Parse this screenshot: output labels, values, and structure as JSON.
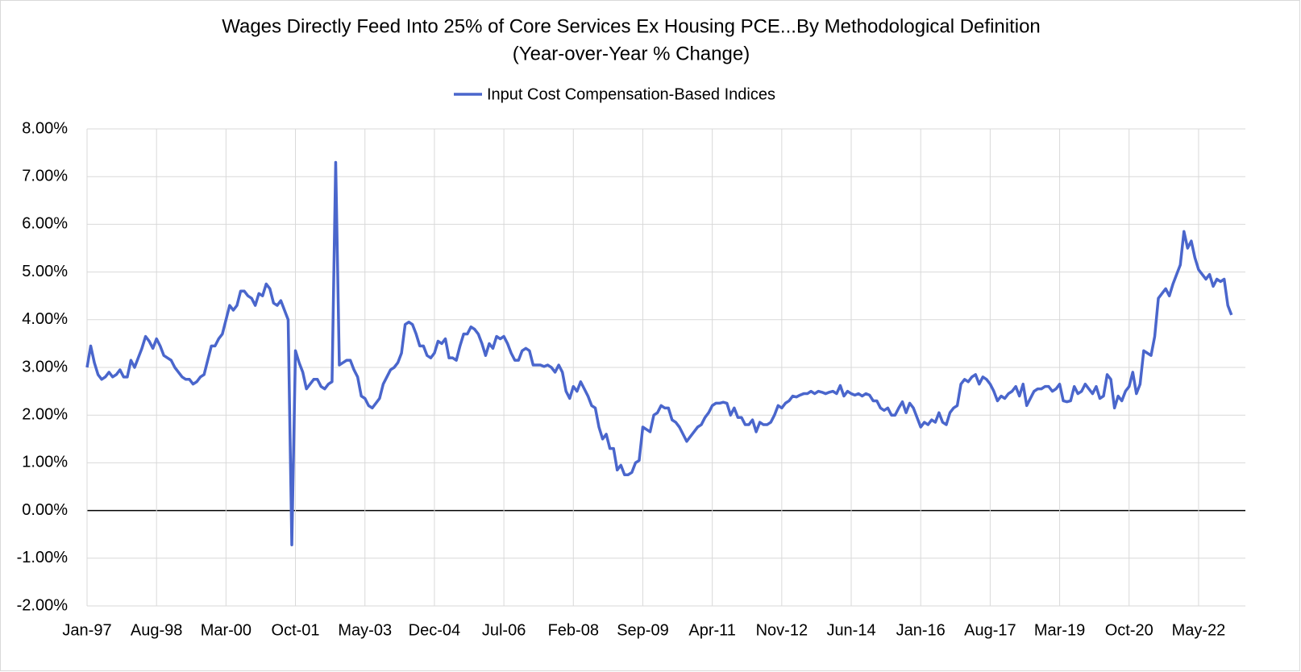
{
  "chart_data": {
    "type": "line",
    "title": "Wages Directly Feed Into 25% of Core Services Ex Housing PCE...By Methodological Definition",
    "subtitle": "(Year-over-Year % Change)",
    "categories": [
      "Jan-97",
      null,
      null,
      null,
      null,
      null,
      null,
      null,
      null,
      null,
      null,
      null,
      null,
      null,
      null,
      null,
      null,
      null,
      null,
      "Aug-98",
      null,
      null,
      null,
      null,
      null,
      null,
      null,
      null,
      null,
      null,
      null,
      null,
      null,
      null,
      null,
      null,
      null,
      null,
      "Mar-00",
      null,
      null,
      null,
      null,
      null,
      null,
      null,
      null,
      null,
      null,
      null,
      null,
      null,
      null,
      null,
      null,
      null,
      null,
      "Oct-01",
      null,
      null,
      null,
      null,
      null,
      null,
      null,
      null,
      null,
      null,
      null,
      null,
      null,
      null,
      null,
      null,
      null,
      null,
      "May-03",
      null,
      null,
      null,
      null,
      null,
      null,
      null,
      null,
      null,
      null,
      null,
      null,
      null,
      null,
      null,
      null,
      null,
      null,
      "Dec-04",
      null,
      null,
      null,
      null,
      null,
      null,
      null,
      null,
      null,
      null,
      null,
      null,
      null,
      null,
      null,
      null,
      null,
      null,
      "Jul-06",
      null,
      null,
      null,
      null,
      null,
      null,
      null,
      null,
      null,
      null,
      null,
      null,
      null,
      null,
      null,
      null,
      null,
      null,
      "Feb-08",
      null,
      null,
      null,
      null,
      null,
      null,
      null,
      null,
      null,
      null,
      null,
      null,
      null,
      null,
      null,
      null,
      null,
      null,
      "Sep-09",
      null,
      null,
      null,
      null,
      null,
      null,
      null,
      null,
      null,
      null,
      null,
      null,
      null,
      null,
      null,
      null,
      null,
      null,
      "Apr-11",
      null,
      null,
      null,
      null,
      null,
      null,
      null,
      null,
      null,
      null,
      null,
      null,
      null,
      null,
      null,
      null,
      null,
      null,
      "Nov-12",
      null,
      null,
      null,
      null,
      null,
      null,
      null,
      null,
      null,
      null,
      null,
      null,
      null,
      null,
      null,
      null,
      null,
      null,
      "Jun-14",
      null,
      null,
      null,
      null,
      null,
      null,
      null,
      null,
      null,
      null,
      null,
      null,
      null,
      null,
      null,
      null,
      null,
      null,
      "Jan-16",
      null,
      null,
      null,
      null,
      null,
      null,
      null,
      null,
      null,
      null,
      null,
      null,
      null,
      null,
      null,
      null,
      null,
      null,
      "Aug-17",
      null,
      null,
      null,
      null,
      null,
      null,
      null,
      null,
      null,
      null,
      null,
      null,
      null,
      null,
      null,
      null,
      null,
      null,
      "Mar-19",
      null,
      null,
      null,
      null,
      null,
      null,
      null,
      null,
      null,
      null,
      null,
      null,
      null,
      null,
      null,
      null,
      null,
      null,
      "Oct-20",
      null,
      null,
      null,
      null,
      null,
      null,
      null,
      null,
      null,
      null,
      null,
      null,
      null,
      null,
      null,
      null,
      null,
      null,
      "May-22",
      null,
      null,
      null,
      null,
      null,
      null,
      null,
      null,
      null
    ],
    "series": [
      {
        "name": "Input Cost Compensation-Based Indices",
        "color": "#4a66cc",
        "values": [
          3.0,
          3.45,
          3.1,
          2.85,
          2.75,
          2.8,
          2.9,
          2.8,
          2.85,
          2.95,
          2.8,
          2.8,
          3.15,
          3.0,
          3.2,
          3.4,
          3.65,
          3.55,
          3.4,
          3.6,
          3.45,
          3.25,
          3.2,
          3.15,
          3.0,
          2.9,
          2.8,
          2.75,
          2.75,
          2.65,
          2.7,
          2.8,
          2.85,
          3.15,
          3.45,
          3.45,
          3.6,
          3.7,
          4.0,
          4.3,
          4.2,
          4.3,
          4.6,
          4.6,
          4.5,
          4.45,
          4.3,
          4.55,
          4.5,
          4.75,
          4.65,
          4.35,
          4.3,
          4.4,
          4.2,
          4.0,
          -0.72,
          3.35,
          3.1,
          2.9,
          2.55,
          2.65,
          2.75,
          2.75,
          2.6,
          2.55,
          2.65,
          2.7,
          7.3,
          3.05,
          3.1,
          3.15,
          3.15,
          2.95,
          2.8,
          2.4,
          2.35,
          2.2,
          2.15,
          2.25,
          2.35,
          2.65,
          2.8,
          2.95,
          3.0,
          3.1,
          3.3,
          3.9,
          3.95,
          3.9,
          3.7,
          3.45,
          3.45,
          3.25,
          3.2,
          3.3,
          3.55,
          3.5,
          3.6,
          3.2,
          3.2,
          3.15,
          3.45,
          3.7,
          3.7,
          3.85,
          3.8,
          3.7,
          3.5,
          3.25,
          3.5,
          3.4,
          3.65,
          3.6,
          3.65,
          3.5,
          3.3,
          3.15,
          3.15,
          3.35,
          3.4,
          3.35,
          3.05,
          3.05,
          3.05,
          3.02,
          3.05,
          3.0,
          2.9,
          3.05,
          2.9,
          2.5,
          2.35,
          2.6,
          2.5,
          2.7,
          2.55,
          2.4,
          2.2,
          2.15,
          1.75,
          1.5,
          1.6,
          1.3,
          1.3,
          0.85,
          0.95,
          0.75,
          0.75,
          0.8,
          1.0,
          1.05,
          1.75,
          1.7,
          1.65,
          2.0,
          2.05,
          2.2,
          2.15,
          2.15,
          1.9,
          1.85,
          1.75,
          1.6,
          1.45,
          1.55,
          1.65,
          1.75,
          1.8,
          1.95,
          2.05,
          2.2,
          2.25,
          2.25,
          2.27,
          2.25,
          2.0,
          2.15,
          1.95,
          1.95,
          1.8,
          1.8,
          1.9,
          1.65,
          1.85,
          1.8,
          1.8,
          1.85,
          2.0,
          2.2,
          2.15,
          2.25,
          2.3,
          2.4,
          2.38,
          2.42,
          2.45,
          2.45,
          2.5,
          2.45,
          2.5,
          2.48,
          2.45,
          2.48,
          2.5,
          2.45,
          2.62,
          2.4,
          2.5,
          2.45,
          2.42,
          2.45,
          2.4,
          2.45,
          2.42,
          2.3,
          2.3,
          2.15,
          2.1,
          2.15,
          2.0,
          2.0,
          2.15,
          2.28,
          2.05,
          2.25,
          2.15,
          1.95,
          1.75,
          1.85,
          1.8,
          1.9,
          1.85,
          2.05,
          1.85,
          1.8,
          2.05,
          2.15,
          2.2,
          2.65,
          2.75,
          2.7,
          2.8,
          2.85,
          2.65,
          2.8,
          2.75,
          2.65,
          2.5,
          2.3,
          2.4,
          2.35,
          2.45,
          2.5,
          2.6,
          2.4,
          2.65,
          2.2,
          2.35,
          2.5,
          2.55,
          2.55,
          2.6,
          2.6,
          2.5,
          2.55,
          2.65,
          2.3,
          2.28,
          2.3,
          2.6,
          2.45,
          2.5,
          2.65,
          2.55,
          2.45,
          2.6,
          2.35,
          2.4,
          2.85,
          2.75,
          2.15,
          2.4,
          2.3,
          2.5,
          2.6,
          2.9,
          2.45,
          2.65,
          3.35,
          3.3,
          3.25,
          3.65,
          4.45,
          4.55,
          4.65,
          4.5,
          4.75,
          4.95,
          5.15,
          5.85,
          5.5,
          5.65,
          5.3,
          5.05,
          4.95,
          4.85,
          4.95,
          4.7,
          4.85,
          4.8,
          4.85,
          4.3,
          4.1
        ]
      }
    ],
    "ylim": [
      -2,
      8
    ],
    "yticks": [
      {
        "value": -2,
        "label": "-2.00%"
      },
      {
        "value": -1,
        "label": "-1.00%"
      },
      {
        "value": 0,
        "label": "0.00%"
      },
      {
        "value": 1,
        "label": "1.00%"
      },
      {
        "value": 2,
        "label": "2.00%"
      },
      {
        "value": 3,
        "label": "3.00%"
      },
      {
        "value": 4,
        "label": "4.00%"
      },
      {
        "value": 5,
        "label": "5.00%"
      },
      {
        "value": 6,
        "label": "6.00%"
      },
      {
        "value": 7,
        "label": "7.00%"
      },
      {
        "value": 8,
        "label": "8.00%"
      }
    ],
    "grid": true,
    "legend": "top"
  }
}
